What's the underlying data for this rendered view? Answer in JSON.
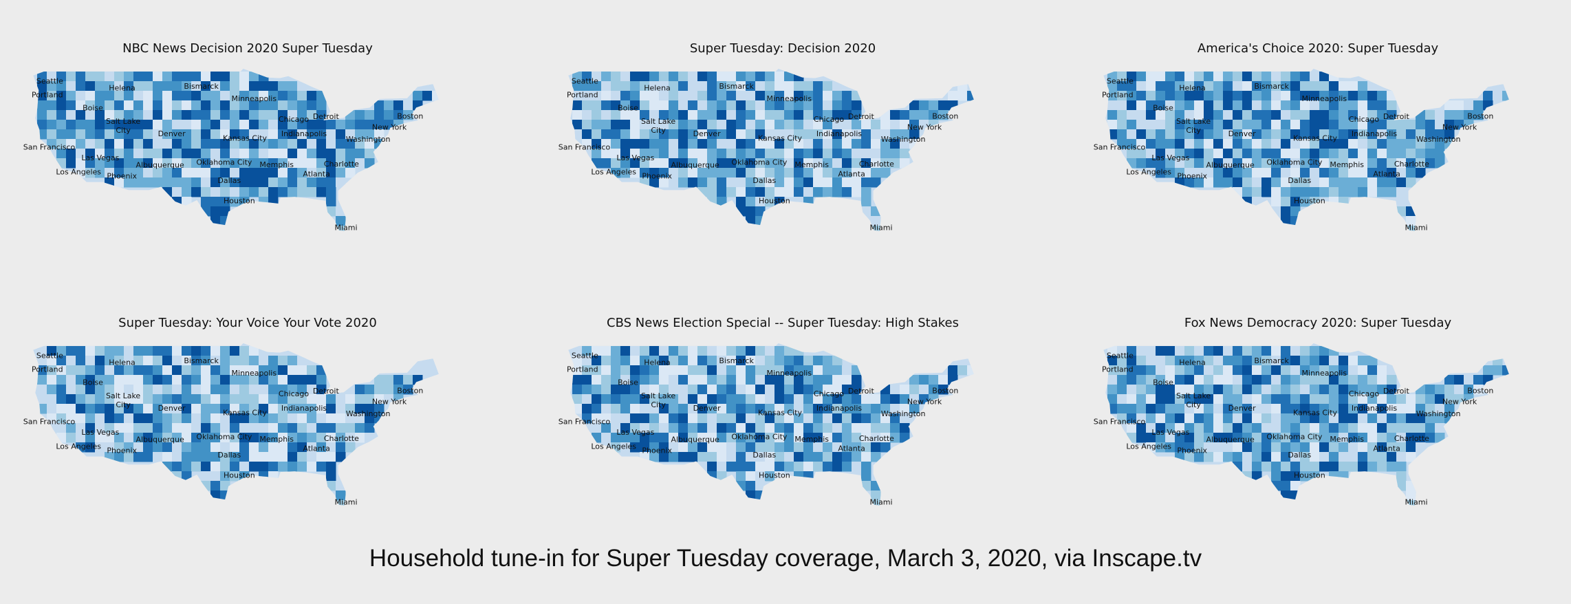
{
  "footer": {
    "caption": "Household tune-in for Super Tuesday coverage, March 3, 2020, via Inscape.tv"
  },
  "maps": [
    {
      "title": "NBC News Decision 2020 Super Tuesday",
      "palette": "blues",
      "intensity": 0.78
    },
    {
      "title": "Super Tuesday: Decision 2020",
      "palette": "blues",
      "intensity": 0.42
    },
    {
      "title": "America's Choice 2020: Super Tuesday",
      "palette": "blues",
      "intensity": 0.6
    },
    {
      "title": "Super Tuesday: Your Voice Your Vote 2020",
      "palette": "blues",
      "intensity": 0.45
    },
    {
      "title": "CBS News Election Special -- Super Tuesday: High Stakes",
      "palette": "blues",
      "intensity": 0.58
    },
    {
      "title": "Fox News Democracy 2020: Super Tuesday",
      "palette": "blues",
      "intensity": 0.66
    }
  ],
  "cities": [
    {
      "name": "Seattle",
      "lon": -122.33,
      "lat": 47.61
    },
    {
      "name": "Portland",
      "lon": -122.68,
      "lat": 45.52
    },
    {
      "name": "Helena",
      "lon": -112.04,
      "lat": 46.59
    },
    {
      "name": "Bismarck",
      "lon": -100.78,
      "lat": 46.81
    },
    {
      "name": "Boise",
      "lon": -116.2,
      "lat": 43.62
    },
    {
      "name": "Minneapolis",
      "lon": -93.27,
      "lat": 44.98
    },
    {
      "name": "Salt Lake",
      "lon": -111.89,
      "lat": 40.76
    },
    {
      "name": "City",
      "lon": -111.89,
      "lat": 40.76
    },
    {
      "name": "Chicago",
      "lon": -87.63,
      "lat": 41.88
    },
    {
      "name": "Detroit",
      "lon": -83.05,
      "lat": 42.33
    },
    {
      "name": "Boston",
      "lon": -71.06,
      "lat": 42.36
    },
    {
      "name": "Denver",
      "lon": -104.99,
      "lat": 39.74
    },
    {
      "name": "Kansas City",
      "lon": -94.58,
      "lat": 39.1
    },
    {
      "name": "Indianapolis",
      "lon": -86.16,
      "lat": 39.77
    },
    {
      "name": "New York",
      "lon": -74.01,
      "lat": 40.71
    },
    {
      "name": "Washington",
      "lon": -77.04,
      "lat": 38.91
    },
    {
      "name": "San Francisco",
      "lon": -122.42,
      "lat": 37.77
    },
    {
      "name": "Las Vegas",
      "lon": -115.14,
      "lat": 36.17
    },
    {
      "name": "Albuquerque",
      "lon": -106.65,
      "lat": 35.08
    },
    {
      "name": "Oklahoma City",
      "lon": -97.52,
      "lat": 35.47
    },
    {
      "name": "Memphis",
      "lon": -90.05,
      "lat": 35.15
    },
    {
      "name": "Charlotte",
      "lon": -80.84,
      "lat": 35.23
    },
    {
      "name": "Los Angeles",
      "lon": -118.24,
      "lat": 34.05
    },
    {
      "name": "Phoenix",
      "lon": -112.07,
      "lat": 33.45
    },
    {
      "name": "Atlanta",
      "lon": -84.39,
      "lat": 33.75
    },
    {
      "name": "Dallas",
      "lon": -96.8,
      "lat": 32.78
    },
    {
      "name": "Houston",
      "lon": -95.37,
      "lat": 29.76
    },
    {
      "name": "Miami",
      "lon": -80.19,
      "lat": 25.76
    }
  ],
  "colors": {
    "background": "#ececec",
    "blues": [
      "#dbe8f5",
      "#c6dbef",
      "#9ecae1",
      "#6baed6",
      "#4292c6",
      "#2171b5",
      "#08519c"
    ]
  }
}
